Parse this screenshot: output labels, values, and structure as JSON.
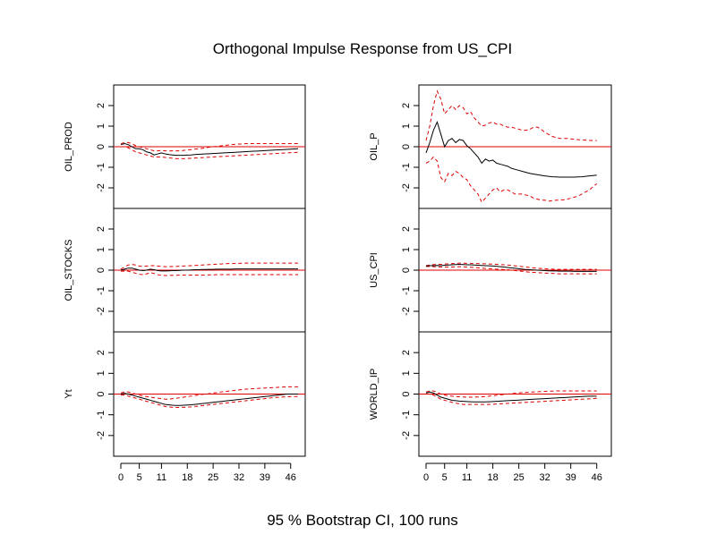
{
  "chart_data": {
    "type": "line",
    "title": "Orthogonal Impulse Response from US_CPI",
    "subtitle": "95 % Bootstrap CI,  100 runs",
    "x_ticks": [
      0,
      5,
      11,
      18,
      25,
      32,
      39,
      46
    ],
    "y_ticks": [
      2,
      1,
      0,
      -1,
      -2
    ],
    "y_tick_labels": [
      "2",
      "1",
      "0",
      "-1",
      "-2"
    ],
    "xlim": [
      0,
      48
    ],
    "ylim": [
      -3,
      3
    ],
    "colors": {
      "irf": "#000000",
      "bounds": "#dd0000",
      "zero": "#dd0000"
    },
    "panels": [
      {
        "name": "OIL_PROD",
        "irf": [
          0.1,
          0.15,
          0.1,
          0,
          -0.1,
          -0.1,
          -0.15,
          -0.25,
          -0.3,
          -0.4,
          -0.35,
          -0.3,
          -0.35,
          -0.38,
          -0.4,
          -0.42,
          -0.42,
          -0.42,
          -0.41,
          -0.4,
          -0.38,
          -0.37,
          -0.36,
          -0.35,
          -0.34,
          -0.33,
          -0.32,
          -0.31,
          -0.3,
          -0.29,
          -0.28,
          -0.27,
          -0.26,
          -0.25,
          -0.24,
          -0.23,
          -0.22,
          -0.21,
          -0.2,
          -0.19,
          -0.18,
          -0.17,
          -0.16,
          -0.15,
          -0.14,
          -0.13,
          -0.12,
          -0.11,
          -0.1
        ],
        "upper": [
          0.15,
          0.2,
          0.2,
          0.15,
          0.05,
          0,
          -0.05,
          -0.1,
          -0.15,
          -0.2,
          -0.2,
          -0.18,
          -0.2,
          -0.2,
          -0.2,
          -0.2,
          -0.2,
          -0.18,
          -0.16,
          -0.14,
          -0.12,
          -0.1,
          -0.08,
          -0.05,
          -0.02,
          0,
          0.02,
          0.04,
          0.06,
          0.08,
          0.1,
          0.12,
          0.13,
          0.14,
          0.15,
          0.15,
          0.15,
          0.15,
          0.15,
          0.15,
          0.15,
          0.15,
          0.15,
          0.15,
          0.15,
          0.15,
          0.15,
          0.15,
          0.15
        ],
        "lower": [
          0,
          0,
          -0.05,
          -0.15,
          -0.25,
          -0.3,
          -0.35,
          -0.4,
          -0.45,
          -0.5,
          -0.5,
          -0.5,
          -0.52,
          -0.54,
          -0.56,
          -0.58,
          -0.58,
          -0.58,
          -0.57,
          -0.56,
          -0.55,
          -0.54,
          -0.53,
          -0.52,
          -0.51,
          -0.5,
          -0.49,
          -0.48,
          -0.47,
          -0.46,
          -0.45,
          -0.44,
          -0.43,
          -0.42,
          -0.41,
          -0.4,
          -0.39,
          -0.38,
          -0.37,
          -0.36,
          -0.35,
          -0.34,
          -0.33,
          -0.32,
          -0.31,
          -0.3,
          -0.29,
          -0.28,
          -0.27
        ]
      },
      {
        "name": "OIL_P",
        "irf": [
          -0.3,
          0.2,
          0.8,
          1.2,
          0.6,
          0.0,
          0.3,
          0.4,
          0.2,
          0.35,
          0.3,
          0.05,
          -0.1,
          -0.3,
          -0.5,
          -0.8,
          -0.6,
          -0.7,
          -0.65,
          -0.8,
          -0.85,
          -0.9,
          -0.95,
          -1.05,
          -1.1,
          -1.15,
          -1.2,
          -1.25,
          -1.3,
          -1.33,
          -1.36,
          -1.39,
          -1.42,
          -1.44,
          -1.46,
          -1.47,
          -1.48,
          -1.48,
          -1.48,
          -1.48,
          -1.48,
          -1.47,
          -1.46,
          -1.44,
          -1.42,
          -1.4,
          -1.38
        ],
        "upper": [
          0.3,
          1.0,
          2.0,
          2.7,
          2.3,
          1.6,
          1.8,
          2.0,
          1.8,
          2.0,
          1.9,
          1.6,
          1.7,
          1.4,
          1.2,
          1.0,
          1.05,
          1.15,
          1.2,
          1.1,
          1.1,
          1.0,
          0.95,
          0.95,
          0.9,
          0.85,
          0.8,
          0.8,
          0.85,
          0.95,
          0.95,
          0.85,
          0.7,
          0.6,
          0.5,
          0.45,
          0.4,
          0.4,
          0.4,
          0.38,
          0.36,
          0.34,
          0.33,
          0.32,
          0.31,
          0.3,
          0.3
        ],
        "lower": [
          -0.8,
          -0.7,
          -0.5,
          -0.7,
          -1.5,
          -1.7,
          -1.3,
          -1.4,
          -1.2,
          -1.3,
          -1.5,
          -1.6,
          -1.9,
          -2.1,
          -2.3,
          -2.7,
          -2.5,
          -2.3,
          -2.1,
          -2.0,
          -2.2,
          -2.1,
          -2.1,
          -2.2,
          -2.3,
          -2.3,
          -2.3,
          -2.35,
          -2.4,
          -2.5,
          -2.55,
          -2.6,
          -2.6,
          -2.65,
          -2.62,
          -2.6,
          -2.6,
          -2.58,
          -2.55,
          -2.5,
          -2.45,
          -2.4,
          -2.3,
          -2.2,
          -2.1,
          -1.95,
          -1.8
        ]
      },
      {
        "name": "OIL_STOCKS",
        "irf": [
          0.0,
          0.05,
          0.1,
          0.1,
          0.05,
          0.0,
          -0.02,
          0.0,
          0.05,
          0.02,
          -0.02,
          -0.04,
          -0.04,
          -0.03,
          -0.02,
          -0.02,
          -0.01,
          0.0,
          0.0,
          0.01,
          0.02,
          0.02,
          0.03,
          0.03,
          0.04,
          0.04,
          0.05,
          0.05,
          0.05,
          0.05,
          0.05,
          0.06,
          0.06,
          0.06,
          0.06,
          0.06,
          0.06,
          0.06,
          0.06,
          0.06,
          0.06,
          0.06,
          0.06,
          0.06,
          0.06,
          0.06,
          0.06,
          0.06,
          0.06
        ],
        "upper": [
          0.05,
          0.15,
          0.25,
          0.28,
          0.25,
          0.2,
          0.18,
          0.2,
          0.22,
          0.22,
          0.2,
          0.18,
          0.17,
          0.17,
          0.18,
          0.18,
          0.19,
          0.2,
          0.21,
          0.22,
          0.23,
          0.24,
          0.25,
          0.26,
          0.27,
          0.28,
          0.29,
          0.3,
          0.31,
          0.32,
          0.32,
          0.33,
          0.33,
          0.34,
          0.34,
          0.34,
          0.34,
          0.34,
          0.34,
          0.34,
          0.34,
          0.34,
          0.34,
          0.34,
          0.34,
          0.34,
          0.34,
          0.34,
          0.34
        ],
        "lower": [
          -0.05,
          -0.05,
          -0.05,
          -0.1,
          -0.15,
          -0.2,
          -0.22,
          -0.18,
          -0.12,
          -0.16,
          -0.22,
          -0.25,
          -0.26,
          -0.26,
          -0.25,
          -0.25,
          -0.24,
          -0.24,
          -0.24,
          -0.24,
          -0.24,
          -0.24,
          -0.24,
          -0.24,
          -0.23,
          -0.23,
          -0.22,
          -0.22,
          -0.22,
          -0.22,
          -0.22,
          -0.22,
          -0.22,
          -0.22,
          -0.22,
          -0.22,
          -0.22,
          -0.22,
          -0.22,
          -0.22,
          -0.22,
          -0.22,
          -0.22,
          -0.22,
          -0.22,
          -0.22,
          -0.22,
          -0.22,
          -0.22
        ]
      },
      {
        "name": "US_CPI",
        "irf": [
          0.2,
          0.22,
          0.22,
          0.23,
          0.22,
          0.24,
          0.25,
          0.26,
          0.27,
          0.28,
          0.27,
          0.26,
          0.26,
          0.25,
          0.24,
          0.23,
          0.22,
          0.21,
          0.2,
          0.19,
          0.17,
          0.15,
          0.13,
          0.11,
          0.09,
          0.07,
          0.05,
          0.03,
          0.02,
          0.01,
          0.0,
          -0.01,
          -0.02,
          -0.03,
          -0.04,
          -0.04,
          -0.05,
          -0.05,
          -0.05,
          -0.05,
          -0.06,
          -0.06,
          -0.06,
          -0.06,
          -0.06,
          -0.06,
          -0.06
        ],
        "upper": [
          0.22,
          0.25,
          0.27,
          0.28,
          0.28,
          0.3,
          0.31,
          0.32,
          0.33,
          0.34,
          0.34,
          0.33,
          0.33,
          0.32,
          0.32,
          0.31,
          0.31,
          0.3,
          0.29,
          0.28,
          0.27,
          0.26,
          0.25,
          0.23,
          0.21,
          0.19,
          0.17,
          0.15,
          0.13,
          0.11,
          0.09,
          0.08,
          0.07,
          0.06,
          0.05,
          0.04,
          0.04,
          0.04,
          0.04,
          0.04,
          0.04,
          0.04,
          0.04,
          0.04,
          0.04,
          0.04,
          0.04
        ],
        "lower": [
          0.18,
          0.18,
          0.17,
          0.16,
          0.15,
          0.15,
          0.15,
          0.15,
          0.16,
          0.17,
          0.16,
          0.15,
          0.14,
          0.13,
          0.12,
          0.1,
          0.08,
          0.07,
          0.06,
          0.05,
          0.04,
          0.03,
          0.02,
          0.0,
          -0.02,
          -0.04,
          -0.06,
          -0.08,
          -0.1,
          -0.11,
          -0.12,
          -0.13,
          -0.14,
          -0.15,
          -0.16,
          -0.17,
          -0.18,
          -0.18,
          -0.18,
          -0.18,
          -0.18,
          -0.18,
          -0.18,
          -0.18,
          -0.18,
          -0.18,
          -0.18
        ]
      },
      {
        "name": "Yt",
        "irf": [
          0.0,
          0.03,
          0.0,
          -0.05,
          -0.1,
          -0.15,
          -0.2,
          -0.25,
          -0.3,
          -0.35,
          -0.4,
          -0.45,
          -0.5,
          -0.52,
          -0.54,
          -0.55,
          -0.55,
          -0.54,
          -0.53,
          -0.52,
          -0.5,
          -0.48,
          -0.46,
          -0.44,
          -0.42,
          -0.4,
          -0.38,
          -0.36,
          -0.34,
          -0.32,
          -0.3,
          -0.28,
          -0.26,
          -0.24,
          -0.22,
          -0.2,
          -0.18,
          -0.16,
          -0.14,
          -0.12,
          -0.1,
          -0.08,
          -0.06,
          -0.04,
          -0.02,
          0.0,
          0.0,
          0.0,
          0.0
        ],
        "upper": [
          0.05,
          0.1,
          0.1,
          0.05,
          0.0,
          -0.05,
          -0.1,
          -0.12,
          -0.15,
          -0.18,
          -0.2,
          -0.22,
          -0.25,
          -0.25,
          -0.22,
          -0.2,
          -0.18,
          -0.15,
          -0.12,
          -0.1,
          -0.07,
          -0.05,
          -0.02,
          0.0,
          0.02,
          0.05,
          0.07,
          0.1,
          0.12,
          0.14,
          0.16,
          0.18,
          0.2,
          0.22,
          0.24,
          0.25,
          0.26,
          0.27,
          0.28,
          0.29,
          0.3,
          0.31,
          0.32,
          0.33,
          0.34,
          0.35,
          0.35,
          0.35,
          0.35
        ],
        "lower": [
          -0.05,
          -0.05,
          -0.1,
          -0.15,
          -0.2,
          -0.25,
          -0.3,
          -0.35,
          -0.4,
          -0.45,
          -0.5,
          -0.55,
          -0.6,
          -0.62,
          -0.64,
          -0.65,
          -0.65,
          -0.64,
          -0.63,
          -0.62,
          -0.6,
          -0.58,
          -0.56,
          -0.54,
          -0.52,
          -0.5,
          -0.48,
          -0.46,
          -0.44,
          -0.42,
          -0.4,
          -0.38,
          -0.36,
          -0.34,
          -0.32,
          -0.3,
          -0.28,
          -0.26,
          -0.24,
          -0.22,
          -0.2,
          -0.18,
          -0.16,
          -0.15,
          -0.14,
          -0.13,
          -0.12,
          -0.12,
          -0.12
        ]
      },
      {
        "name": "WORLD_IP",
        "irf": [
          0.05,
          0.1,
          0.05,
          -0.05,
          -0.15,
          -0.2,
          -0.25,
          -0.3,
          -0.32,
          -0.34,
          -0.35,
          -0.36,
          -0.37,
          -0.38,
          -0.38,
          -0.38,
          -0.38,
          -0.37,
          -0.36,
          -0.35,
          -0.34,
          -0.33,
          -0.32,
          -0.31,
          -0.3,
          -0.29,
          -0.28,
          -0.27,
          -0.26,
          -0.25,
          -0.24,
          -0.23,
          -0.22,
          -0.21,
          -0.2,
          -0.19,
          -0.18,
          -0.17,
          -0.16,
          -0.15,
          -0.14,
          -0.13,
          -0.12,
          -0.11,
          -0.1,
          -0.1,
          -0.1
        ],
        "upper": [
          0.1,
          0.15,
          0.15,
          0.08,
          0.0,
          -0.05,
          -0.08,
          -0.1,
          -0.12,
          -0.13,
          -0.14,
          -0.15,
          -0.15,
          -0.15,
          -0.14,
          -0.13,
          -0.12,
          -0.1,
          -0.08,
          -0.06,
          -0.04,
          -0.02,
          0.0,
          0.02,
          0.04,
          0.06,
          0.07,
          0.08,
          0.09,
          0.1,
          0.11,
          0.12,
          0.13,
          0.14,
          0.14,
          0.15,
          0.15,
          0.15,
          0.15,
          0.15,
          0.15,
          0.15,
          0.15,
          0.15,
          0.15,
          0.15,
          0.15
        ],
        "lower": [
          0.0,
          0.0,
          -0.05,
          -0.15,
          -0.25,
          -0.3,
          -0.35,
          -0.4,
          -0.44,
          -0.47,
          -0.5,
          -0.5,
          -0.5,
          -0.5,
          -0.5,
          -0.5,
          -0.5,
          -0.5,
          -0.49,
          -0.48,
          -0.47,
          -0.46,
          -0.45,
          -0.44,
          -0.43,
          -0.42,
          -0.41,
          -0.4,
          -0.39,
          -0.38,
          -0.37,
          -0.36,
          -0.35,
          -0.34,
          -0.33,
          -0.32,
          -0.31,
          -0.3,
          -0.29,
          -0.28,
          -0.27,
          -0.26,
          -0.25,
          -0.24,
          -0.23,
          -0.22,
          -0.2
        ]
      }
    ]
  }
}
